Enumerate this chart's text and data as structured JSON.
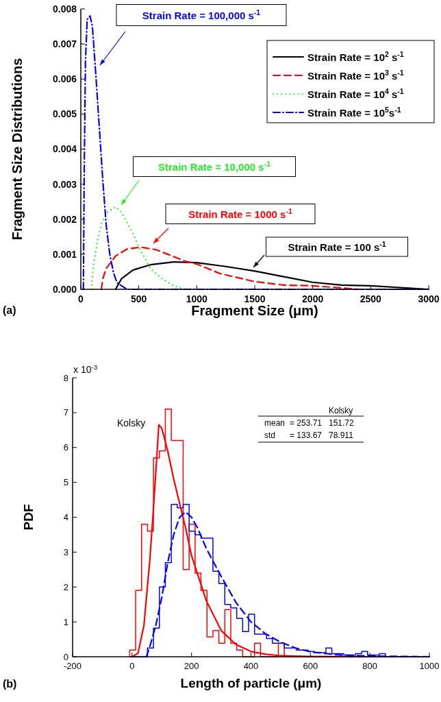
{
  "chart_data": [
    {
      "type": "line",
      "xlabel": "Fragment Size (μm)",
      "ylabel": "Fragment Size Distributions",
      "xlim": [
        0,
        3000
      ],
      "ylim": [
        0,
        0.008
      ],
      "xticks": [
        0,
        500,
        1000,
        1500,
        2000,
        2500,
        3000
      ],
      "yticks": [
        {
          "value": 0,
          "label": "0.000"
        },
        {
          "value": 0.001,
          "label": "0.001"
        },
        {
          "value": 0.002,
          "label": "0.002"
        },
        {
          "value": 0.003,
          "label": "0.003"
        },
        {
          "value": 0.004,
          "label": "0.004"
        },
        {
          "value": 0.005,
          "label": "0.005"
        },
        {
          "value": 0.006,
          "label": "0.006"
        },
        {
          "value": 0.007,
          "label": "0.007"
        },
        {
          "value": 0.008,
          "label": "0.008"
        }
      ],
      "legend": "top right",
      "annotations": [
        "(a)",
        "Strain Rate = 100,000 s$^{-1}$",
        "Strain Rate = 10,000 s$^{-1}$",
        "Strain Rate = 1000 s$^{-1}$",
        "Strain Rate = 100 s$^{-1}$"
      ],
      "series": [
        {
          "name": "Strain Rate = 10$^{2}$ s$^{-1}$",
          "color": "#000000",
          "line_style": "solid",
          "x": [
            300,
            350,
            450,
            600,
            800,
            1000,
            1250,
            1500,
            1750,
            2000,
            2250,
            2500,
            3000
          ],
          "values": [
            0,
            0.0003,
            0.00055,
            0.0007,
            0.00078,
            0.00076,
            0.00065,
            0.00052,
            0.00036,
            0.0002,
            0.00012,
            0.0001,
            0
          ]
        },
        {
          "name": "Strain Rate = 10$^{3}$ s$^{-1}$",
          "color": "#ff0000",
          "line_style": "dashed",
          "x": [
            177,
            190,
            220,
            300,
            400,
            520,
            650,
            750,
            900,
            1000,
            1200,
            1500,
            1750,
            2000,
            2400,
            3000
          ],
          "values": [
            0,
            0.0003,
            0.0006,
            0.00095,
            0.00115,
            0.0012,
            0.00113,
            0.001,
            0.0008,
            0.00072,
            0.00045,
            0.00022,
            0.00012,
            0.0001,
            0,
            0
          ]
        },
        {
          "name": "Strain Rate = 10$^{4}$ s$^{-1}$",
          "color": "#22ee22",
          "line_style": "dotted",
          "x": [
            90,
            110,
            140,
            180,
            230,
            300,
            350,
            400,
            450,
            500,
            600,
            700,
            800,
            900
          ],
          "values": [
            0,
            0.0007,
            0.0013,
            0.0019,
            0.0022,
            0.00235,
            0.0022,
            0.0019,
            0.0016,
            0.0012,
            0.0006,
            0.0003,
            0.0001,
            0
          ]
        },
        {
          "name": "Strain Rate = 10$^{5}$s$^{-1}$",
          "color": "#0000ff",
          "line_style": "dashdot",
          "x": [
            22,
            30,
            40,
            55,
            80,
            100,
            130,
            160,
            190,
            220,
            250,
            280,
            310,
            350,
            400,
            600,
            3000
          ],
          "values": [
            0,
            0.0035,
            0.0065,
            0.0077,
            0.0078,
            0.0075,
            0.0061,
            0.0046,
            0.0031,
            0.0018,
            0.001,
            0.0005,
            0.0002,
            0.0001,
            0,
            0,
            0
          ]
        }
      ]
    },
    {
      "type": "histogram",
      "xlabel": "Length of particle (μm)",
      "ylabel": "PDF",
      "xlim": [
        -200,
        1000
      ],
      "ylim": [
        0,
        8
      ],
      "xticks": [
        -200,
        0,
        200,
        400,
        600,
        800,
        1000
      ],
      "yticks": [
        0,
        1,
        2,
        3,
        4,
        5,
        6,
        7,
        8
      ],
      "bins": [
        -8,
        12,
        32,
        52,
        72,
        92,
        112,
        132,
        152,
        172,
        192,
        212,
        232,
        252,
        272,
        292,
        312,
        332,
        352,
        372,
        392,
        412,
        432,
        452,
        472,
        492,
        512,
        532,
        552,
        572,
        592,
        612,
        632,
        652,
        672,
        692,
        712,
        732,
        752,
        772,
        792,
        812,
        832,
        852
      ],
      "annotations": [
        "x 10$^{-3}$",
        "(b)",
        "Kolsky",
        "mean",
        "= 253.71",
        "151.72",
        "std",
        "= 133.67",
        "78.911"
      ],
      "series": [
        {
          "name": "Kolsky",
          "color": "#ff0000",
          "values": [
            0.19,
            1.9,
            3.8,
            3.6,
            5.7,
            5.9,
            7.1,
            6.2,
            6.2,
            2.5,
            3.8,
            2.4,
            1.9,
            0.57,
            0.75,
            0.39,
            1.35,
            0.39,
            0.19,
            0,
            0,
            0.39,
            0,
            0,
            0,
            0.39,
            0,
            0,
            0,
            0,
            0,
            0,
            0,
            0,
            0,
            0,
            0,
            0,
            0,
            0,
            0,
            0,
            0
          ]
        },
        {
          "color": "#0000ff",
          "values": [
            0,
            0,
            0,
            0.25,
            0.82,
            2.0,
            2.7,
            4.37,
            4.27,
            4.37,
            3.6,
            3.5,
            3.4,
            3.4,
            2.45,
            2.1,
            1.5,
            1.4,
            1.1,
            0.72,
            1.22,
            0.65,
            0.65,
            0.52,
            0.39,
            0.39,
            0.25,
            0.25,
            0.19,
            0.19,
            0.15,
            0.12,
            0.12,
            0.25,
            0.09,
            0.09,
            0.05,
            0.05,
            0.09,
            0.15,
            0.05,
            0.05,
            0.09
          ]
        },
        {
          "type": "line",
          "color": "#ff0000",
          "line_style": "solid",
          "x": [
            0,
            20,
            40,
            60,
            70,
            80,
            90,
            100,
            120,
            140,
            160,
            180,
            200,
            250,
            300,
            350,
            400,
            450,
            500,
            600,
            800,
            1000
          ],
          "values": [
            0,
            0.1,
            0.9,
            2.8,
            4.0,
            5.3,
            6.65,
            6.55,
            5.9,
            5.1,
            4.4,
            3.7,
            2.9,
            1.6,
            0.75,
            0.35,
            0.15,
            0.07,
            0.03,
            0.01,
            0,
            0
          ]
        },
        {
          "type": "line",
          "color": "#0000ff",
          "line_style": "dashed",
          "x": [
            48,
            60,
            80,
            100,
            120,
            140,
            160,
            180,
            200,
            220,
            250,
            300,
            350,
            400,
            450,
            500,
            550,
            600,
            700,
            800,
            1000
          ],
          "values": [
            0,
            0.3,
            0.9,
            1.7,
            2.7,
            3.5,
            4.0,
            4.15,
            4.0,
            3.7,
            3.1,
            2.3,
            1.55,
            1.0,
            0.65,
            0.42,
            0.25,
            0.14,
            0.05,
            0.02,
            0
          ]
        }
      ]
    }
  ]
}
